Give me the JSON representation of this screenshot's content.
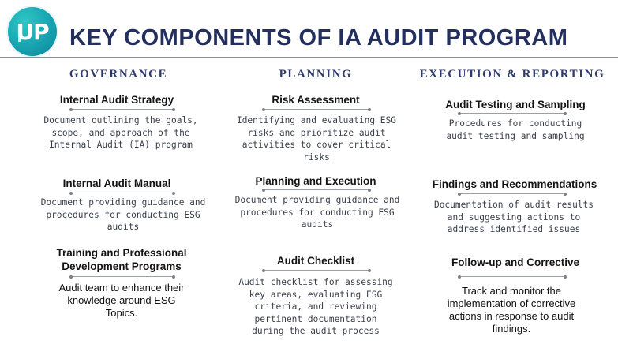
{
  "logo": {
    "text": "UP"
  },
  "title": "KEY COMPONENTS OF IA AUDIT PROGRAM",
  "columns": [
    {
      "heading": "GOVERNANCE",
      "items": [
        {
          "title": "Internal Audit Strategy",
          "description": "Document outlining the goals, scope, and approach of the Internal Audit (IA) program"
        },
        {
          "title": "Internal Audit Manual",
          "description": "Document providing guidance and procedures for conducting ESG audits"
        },
        {
          "title": "Training and Professional Development Programs",
          "description": "Audit team to enhance their knowledge around ESG Topics."
        }
      ]
    },
    {
      "heading": "PLANNING",
      "items": [
        {
          "title": "Risk Assessment",
          "description": "Identifying and evaluating ESG risks and prioritize audit activities to cover critical risks"
        },
        {
          "title": "Planning and Execution",
          "description": "Document providing guidance and procedures for conducting ESG audits"
        },
        {
          "title": "Audit Checklist",
          "description": "Audit checklist for assessing key areas, evaluating ESG criteria, and reviewing pertinent documentation during the audit process"
        }
      ]
    },
    {
      "heading": "EXECUTION & REPORTING",
      "items": [
        {
          "title": "Audit Testing and Sampling",
          "description": "Procedures for conducting audit testing and sampling"
        },
        {
          "title": "Findings and Recommendations",
          "description": "Documentation of audit results and suggesting actions to address identified issues"
        },
        {
          "title": "Follow-up and Corrective",
          "description": "Track and monitor the implementation of corrective actions in response to audit findings."
        }
      ]
    }
  ],
  "colors": {
    "title": "#23305f",
    "logo": "#17a3b0",
    "heading": "#2d3a6b"
  }
}
